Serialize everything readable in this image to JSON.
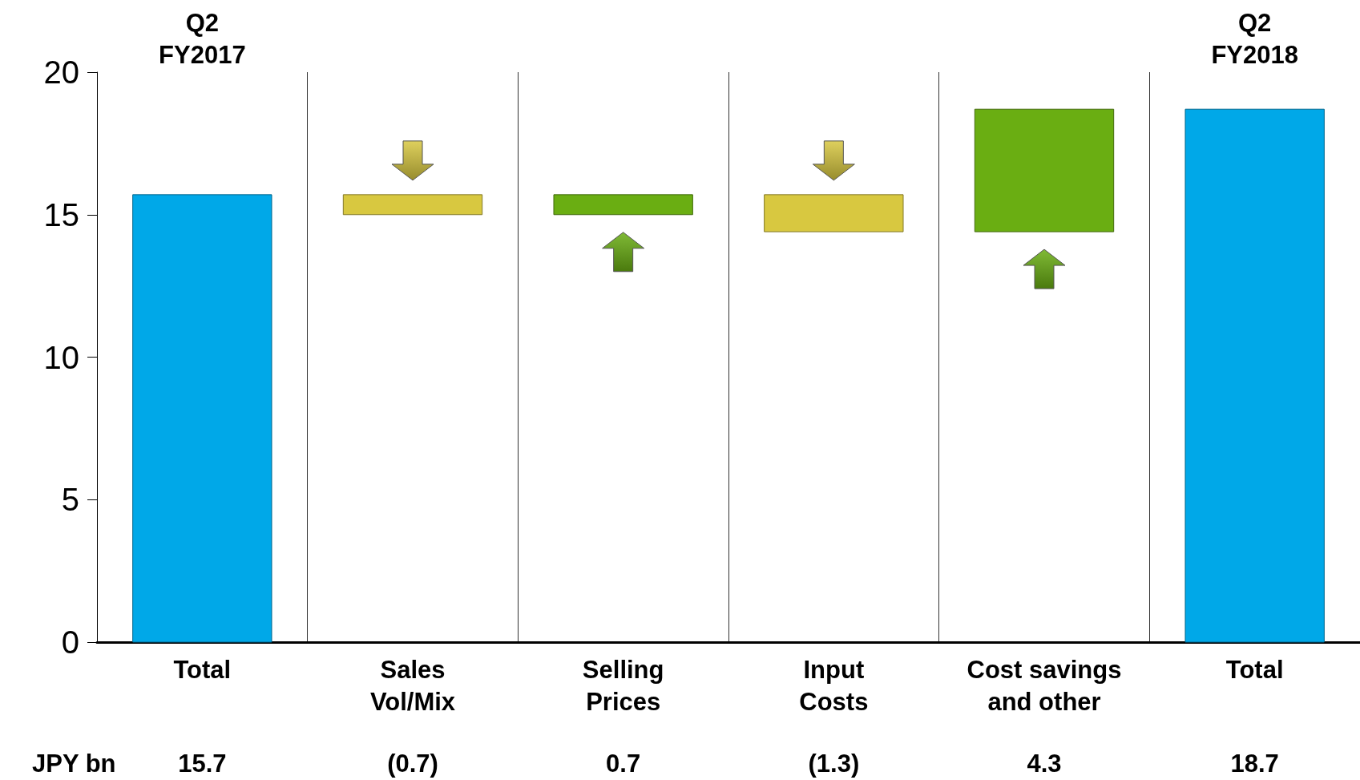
{
  "chart_data": {
    "type": "bar",
    "categories": [
      "Total",
      "Sales\nVol/Mix",
      "Selling\nPrices",
      "Input\nCosts",
      "Cost savings\nand other",
      "Total"
    ],
    "values": [
      15.7,
      -0.7,
      0.7,
      -1.3,
      4.3,
      18.7
    ],
    "base": [
      0,
      15.7,
      15.0,
      15.7,
      14.4,
      0
    ],
    "colors": [
      "#00a8e8",
      "#d8c840",
      "#6aae12",
      "#d8c840",
      "#6aae12",
      "#00a8e8"
    ],
    "value_labels": [
      "15.7",
      "(0.7)",
      "0.7",
      "(1.3)",
      "4.3",
      "18.7"
    ],
    "annotations": [
      "Q2\nFY2017",
      "Q2\nFY2018",
      "JPY bn"
    ],
    "ylim": [
      0,
      20
    ],
    "yticks": [
      0,
      5,
      10,
      15,
      20
    ],
    "grid": "x"
  }
}
